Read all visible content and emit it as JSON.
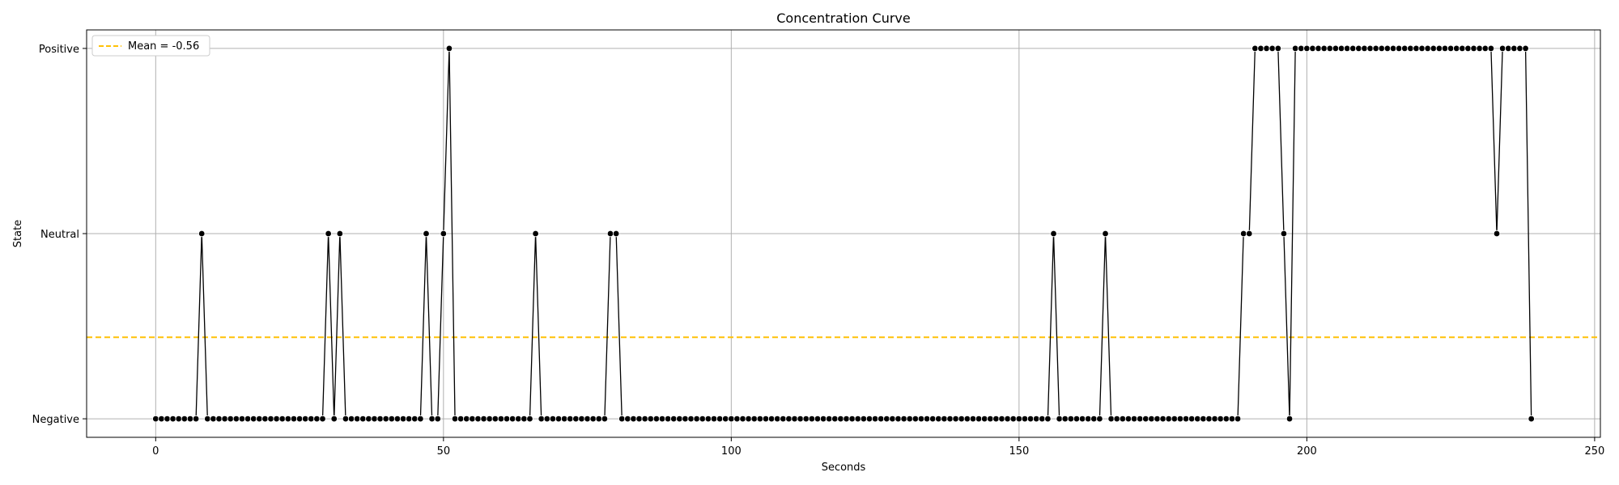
{
  "chart_data": {
    "type": "line",
    "title": "Concentration Curve",
    "xlabel": "Seconds",
    "ylabel": "State",
    "xlim": [
      -12,
      251
    ],
    "ylim": [
      -1.1,
      1.1
    ],
    "x_ticks": [
      0,
      50,
      100,
      150,
      200,
      250
    ],
    "y_ticks": [
      {
        "value": -1,
        "label": "Negative"
      },
      {
        "value": 0,
        "label": "Neutral"
      },
      {
        "value": 1,
        "label": "Positive"
      }
    ],
    "grid": true,
    "legend_position": "top-left",
    "series": [
      {
        "color": "#000000",
        "marker": "circle",
        "x_start": 0,
        "x_step": 1,
        "values": [
          -1,
          -1,
          -1,
          -1,
          -1,
          -1,
          -1,
          -1,
          0,
          -1,
          -1,
          -1,
          -1,
          -1,
          -1,
          -1,
          -1,
          -1,
          -1,
          -1,
          -1,
          -1,
          -1,
          -1,
          -1,
          -1,
          -1,
          -1,
          -1,
          -1,
          0,
          -1,
          0,
          -1,
          -1,
          -1,
          -1,
          -1,
          -1,
          -1,
          -1,
          -1,
          -1,
          -1,
          -1,
          -1,
          -1,
          0,
          -1,
          -1,
          0,
          1,
          -1,
          -1,
          -1,
          -1,
          -1,
          -1,
          -1,
          -1,
          -1,
          -1,
          -1,
          -1,
          -1,
          -1,
          0,
          -1,
          -1,
          -1,
          -1,
          -1,
          -1,
          -1,
          -1,
          -1,
          -1,
          -1,
          -1,
          0,
          0,
          -1,
          -1,
          -1,
          -1,
          -1,
          -1,
          -1,
          -1,
          -1,
          -1,
          -1,
          -1,
          -1,
          -1,
          -1,
          -1,
          -1,
          -1,
          -1,
          -1,
          -1,
          -1,
          -1,
          -1,
          -1,
          -1,
          -1,
          -1,
          -1,
          -1,
          -1,
          -1,
          -1,
          -1,
          -1,
          -1,
          -1,
          -1,
          -1,
          -1,
          -1,
          -1,
          -1,
          -1,
          -1,
          -1,
          -1,
          -1,
          -1,
          -1,
          -1,
          -1,
          -1,
          -1,
          -1,
          -1,
          -1,
          -1,
          -1,
          -1,
          -1,
          -1,
          -1,
          -1,
          -1,
          -1,
          -1,
          -1,
          -1,
          -1,
          -1,
          -1,
          -1,
          -1,
          -1,
          0,
          -1,
          -1,
          -1,
          -1,
          -1,
          -1,
          -1,
          -1,
          0,
          -1,
          -1,
          -1,
          -1,
          -1,
          -1,
          -1,
          -1,
          -1,
          -1,
          -1,
          -1,
          -1,
          -1,
          -1,
          -1,
          -1,
          -1,
          -1,
          -1,
          -1,
          -1,
          -1,
          0,
          0,
          1,
          1,
          1,
          1,
          1,
          0,
          -1,
          1,
          1,
          1,
          1,
          1,
          1,
          1,
          1,
          1,
          1,
          1,
          1,
          1,
          1,
          1,
          1,
          1,
          1,
          1,
          1,
          1,
          1,
          1,
          1,
          1,
          1,
          1,
          1,
          1,
          1,
          1,
          1,
          1,
          1,
          1,
          0,
          1,
          1,
          1,
          1,
          1,
          -1
        ]
      }
    ],
    "mean_line": {
      "value": -0.56,
      "label": "Mean = -0.56",
      "color": "#ffc107",
      "style": "dashed"
    }
  }
}
